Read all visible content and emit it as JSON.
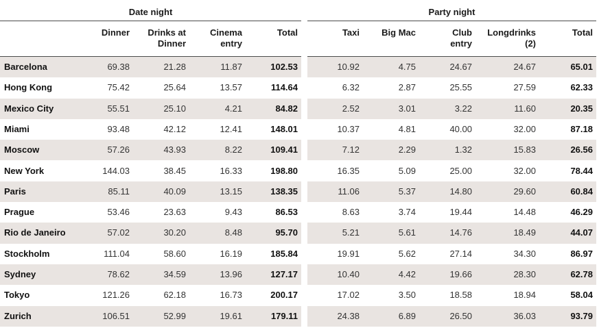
{
  "groups": {
    "date_night": "Date night",
    "party_night": "Party night"
  },
  "columns": {
    "dinner": "Dinner",
    "drinks_1": "Drinks at",
    "drinks_2": "Dinner",
    "cinema_1": "Cinema",
    "cinema_2": "entry",
    "date_total": "Total",
    "taxi": "Taxi",
    "bigmac": "Big Mac",
    "club_1": "Club",
    "club_2": "entry",
    "long_1": "Longdrinks",
    "long_2": "(2)",
    "party_total": "Total"
  },
  "rows": [
    {
      "city": "Barcelona",
      "dinner": "69.38",
      "drinks": "21.28",
      "cinema": "11.87",
      "date_total": "102.53",
      "taxi": "10.92",
      "bigmac": "4.75",
      "club": "24.67",
      "longdrinks": "24.67",
      "party_total": "65.01"
    },
    {
      "city": "Hong Kong",
      "dinner": "75.42",
      "drinks": "25.64",
      "cinema": "13.57",
      "date_total": "114.64",
      "taxi": "6.32",
      "bigmac": "2.87",
      "club": "25.55",
      "longdrinks": "27.59",
      "party_total": "62.33"
    },
    {
      "city": "Mexico City",
      "dinner": "55.51",
      "drinks": "25.10",
      "cinema": "4.21",
      "date_total": "84.82",
      "taxi": "2.52",
      "bigmac": "3.01",
      "club": "3.22",
      "longdrinks": "11.60",
      "party_total": "20.35"
    },
    {
      "city": "Miami",
      "dinner": "93.48",
      "drinks": "42.12",
      "cinema": "12.41",
      "date_total": "148.01",
      "taxi": "10.37",
      "bigmac": "4.81",
      "club": "40.00",
      "longdrinks": "32.00",
      "party_total": "87.18"
    },
    {
      "city": "Moscow",
      "dinner": "57.26",
      "drinks": "43.93",
      "cinema": "8.22",
      "date_total": "109.41",
      "taxi": "7.12",
      "bigmac": "2.29",
      "club": "1.32",
      "longdrinks": "15.83",
      "party_total": "26.56"
    },
    {
      "city": "New York",
      "dinner": "144.03",
      "drinks": "38.45",
      "cinema": "16.33",
      "date_total": "198.80",
      "taxi": "16.35",
      "bigmac": "5.09",
      "club": "25.00",
      "longdrinks": "32.00",
      "party_total": "78.44"
    },
    {
      "city": "Paris",
      "dinner": "85.11",
      "drinks": "40.09",
      "cinema": "13.15",
      "date_total": "138.35",
      "taxi": "11.06",
      "bigmac": "5.37",
      "club": "14.80",
      "longdrinks": "29.60",
      "party_total": "60.84"
    },
    {
      "city": "Prague",
      "dinner": "53.46",
      "drinks": "23.63",
      "cinema": "9.43",
      "date_total": "86.53",
      "taxi": "8.63",
      "bigmac": "3.74",
      "club": "19.44",
      "longdrinks": "14.48",
      "party_total": "46.29"
    },
    {
      "city": "Rio de Janeiro",
      "dinner": "57.02",
      "drinks": "30.20",
      "cinema": "8.48",
      "date_total": "95.70",
      "taxi": "5.21",
      "bigmac": "5.61",
      "club": "14.76",
      "longdrinks": "18.49",
      "party_total": "44.07"
    },
    {
      "city": "Stockholm",
      "dinner": "111.04",
      "drinks": "58.60",
      "cinema": "16.19",
      "date_total": "185.84",
      "taxi": "19.91",
      "bigmac": "5.62",
      "club": "27.14",
      "longdrinks": "34.30",
      "party_total": "86.97"
    },
    {
      "city": "Sydney",
      "dinner": "78.62",
      "drinks": "34.59",
      "cinema": "13.96",
      "date_total": "127.17",
      "taxi": "10.40",
      "bigmac": "4.42",
      "club": "19.66",
      "longdrinks": "28.30",
      "party_total": "62.78"
    },
    {
      "city": "Tokyo",
      "dinner": "121.26",
      "drinks": "62.18",
      "cinema": "16.73",
      "date_total": "200.17",
      "taxi": "17.02",
      "bigmac": "3.50",
      "club": "18.58",
      "longdrinks": "18.94",
      "party_total": "58.04"
    },
    {
      "city": "Zurich",
      "dinner": "106.51",
      "drinks": "52.99",
      "cinema": "19.61",
      "date_total": "179.11",
      "taxi": "24.38",
      "bigmac": "6.89",
      "club": "26.50",
      "longdrinks": "36.03",
      "party_total": "93.79"
    }
  ]
}
